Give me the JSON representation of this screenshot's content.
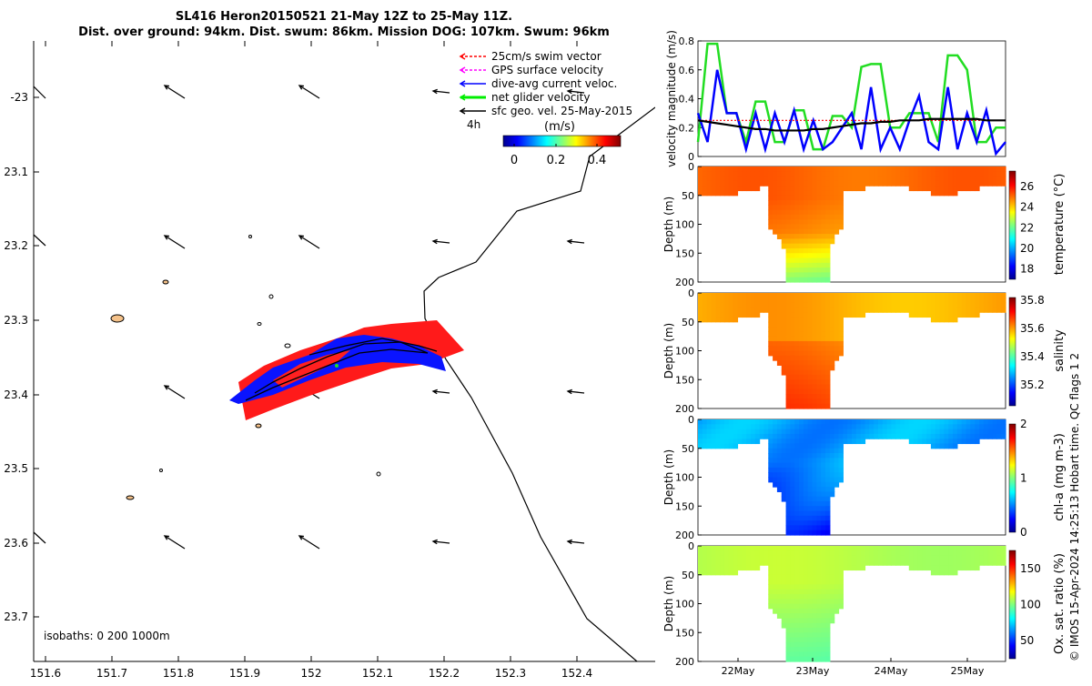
{
  "title": {
    "line1": "SL416 Heron20150521 21-May 12Z to 25-May 11Z.",
    "line2": "Dist. over ground: 94km. Dist. swum: 86km. Mission DOG: 107km. Swum: 96km"
  },
  "map": {
    "x_ticks": [
      "151.6",
      "151.7",
      "151.8",
      "151.9",
      "152",
      "152.1",
      "152.2",
      "152.3",
      "152.4"
    ],
    "y_ticks": [
      "-23",
      "23.1",
      "23.2",
      "23.3",
      "23.4",
      "23.5",
      "23.6",
      "23.7"
    ],
    "legend": [
      {
        "label": "25cm/s swim vector",
        "color": "#ff0000"
      },
      {
        "label": "GPS surface velocity",
        "color": "#ff00ff"
      },
      {
        "label": "dive-avg current veloc.",
        "color": "#0000ff"
      },
      {
        "label": "net glider velocity",
        "color": "#00ee00"
      },
      {
        "label": "sfc geo. vel. 25-May-2015",
        "color": "#000000"
      }
    ],
    "time_label": "4h",
    "colorbar_title": "(m/s)",
    "colorbar_ticks": [
      "0",
      "0.2",
      "0.4"
    ],
    "isobaths_label": "isobaths: 0   200  1000m"
  },
  "footer_text": "© IMOS 15-Apr-2024 14:25:13 Hobart time. QC flags 1  2",
  "chart_data": [
    {
      "type": "line",
      "ylabel": "velocity magnitude (m/s)",
      "ylim": [
        0,
        0.8
      ],
      "y_ticks": [
        "0",
        "0.2",
        "0.4",
        "0.6",
        "0.8"
      ],
      "x_ticks": [
        "22May",
        "23May",
        "24May",
        "25May"
      ],
      "series": [
        {
          "name": "net glider velocity",
          "color": "#22dd22",
          "values": [
            0.1,
            0.78,
            0.78,
            0.3,
            0.3,
            0.1,
            0.38,
            0.38,
            0.1,
            0.1,
            0.32,
            0.32,
            0.05,
            0.05,
            0.28,
            0.28,
            0.2,
            0.62,
            0.64,
            0.64,
            0.2,
            0.2,
            0.3,
            0.3,
            0.3,
            0.1,
            0.7,
            0.7,
            0.6,
            0.1,
            0.1,
            0.2,
            0.2
          ]
        },
        {
          "name": "dive-avg current veloc.",
          "color": "#0000ff",
          "values": [
            0.3,
            0.1,
            0.6,
            0.3,
            0.3,
            0.05,
            0.3,
            0.05,
            0.3,
            0.1,
            0.32,
            0.05,
            0.25,
            0.05,
            0.1,
            0.2,
            0.3,
            0.05,
            0.48,
            0.05,
            0.2,
            0.05,
            0.25,
            0.42,
            0.1,
            0.05,
            0.48,
            0.05,
            0.3,
            0.1,
            0.32,
            0.02,
            0.1
          ]
        },
        {
          "name": "25cm/s swim vector",
          "color": "#ff0000",
          "values": [
            0.25,
            0.25,
            0.25,
            0.25,
            0.25,
            0.25,
            0.25,
            0.25,
            0.25,
            0.25,
            0.25,
            0.25,
            0.25,
            0.25,
            0.25,
            0.25,
            0.25,
            0.25,
            0.25,
            0.25,
            0.25,
            0.25,
            0.25,
            0.25,
            0.25,
            0.25,
            0.25,
            0.25,
            0.25,
            0.25,
            0.25,
            0.25,
            0.25
          ]
        },
        {
          "name": "sfc geo. vel.",
          "color": "#000000",
          "values": [
            0.25,
            0.24,
            0.23,
            0.22,
            0.21,
            0.2,
            0.19,
            0.19,
            0.18,
            0.18,
            0.18,
            0.18,
            0.19,
            0.19,
            0.2,
            0.21,
            0.22,
            0.23,
            0.23,
            0.24,
            0.24,
            0.25,
            0.25,
            0.25,
            0.26,
            0.26,
            0.26,
            0.26,
            0.26,
            0.26,
            0.25,
            0.25,
            0.25
          ]
        }
      ]
    },
    {
      "type": "heatmap",
      "ylabel": "Depth (m)",
      "clabel": "temperature (°C)",
      "y_ticks": [
        "0",
        "50",
        "100",
        "150",
        "200"
      ],
      "c_ticks": [
        "18",
        "20",
        "22",
        "24",
        "26"
      ],
      "crange": [
        17,
        27.5
      ]
    },
    {
      "type": "heatmap",
      "ylabel": "Depth (m)",
      "clabel": "salinity",
      "y_ticks": [
        "0",
        "50",
        "100",
        "150",
        "200"
      ],
      "c_ticks": [
        "35.2",
        "35.4",
        "35.6",
        "35.8"
      ],
      "crange": [
        35.05,
        35.82
      ]
    },
    {
      "type": "heatmap",
      "ylabel": "Depth (m)",
      "clabel": "chl-a (mg m-3)",
      "y_ticks": [
        "0",
        "50",
        "100",
        "150",
        "200"
      ],
      "c_ticks": [
        "0",
        "1",
        "2"
      ],
      "crange": [
        0,
        2
      ]
    },
    {
      "type": "heatmap",
      "ylabel": "Depth (m)",
      "clabel": "Ox. sat. ratio (%)",
      "y_ticks": [
        "0",
        "50",
        "100",
        "150",
        "200"
      ],
      "c_ticks": [
        "50",
        "100",
        "150"
      ],
      "crange": [
        25,
        175
      ]
    }
  ]
}
